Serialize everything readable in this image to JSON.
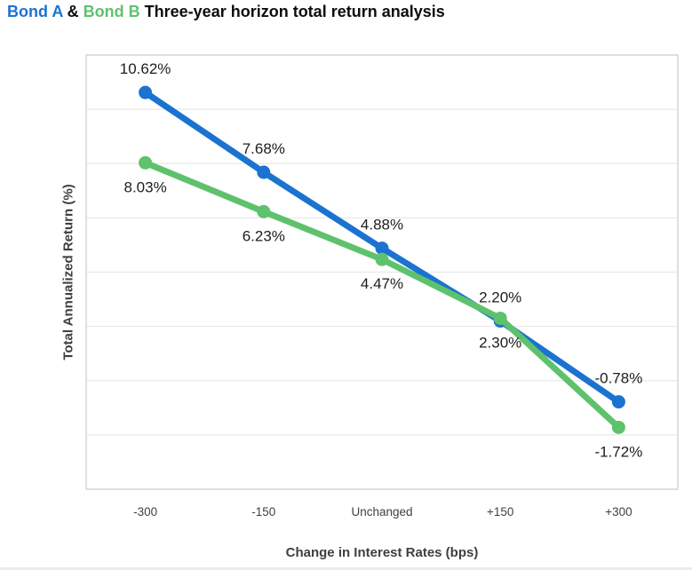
{
  "title": {
    "bond_a": "Bond A",
    "amp": " & ",
    "bond_b": "Bond B",
    "rest": " Three-year horizon total return analysis"
  },
  "colors": {
    "bond_a": "#1b73cf",
    "bond_b": "#5ec26d",
    "axis_text": "#404040",
    "axis_title_text": "#3f3f3f",
    "gridline": "#e9e9e9",
    "plot_border": "#d6d6d6",
    "label_text": "#1d1d1d"
  },
  "chart_data": {
    "type": "line",
    "title": "Bond A & Bond B Three-year horizon total return analysis",
    "xlabel": "Change in Interest Rates (bps)",
    "ylabel": "Total Annualized Return (%)",
    "categories": [
      "-300",
      "-150",
      "Unchanged",
      "+150",
      "+300"
    ],
    "series": [
      {
        "id": "bond-a",
        "name": "Bond A",
        "color_key": "bond_a",
        "values": [
          10.62,
          7.68,
          4.88,
          2.2,
          -0.78
        ],
        "labels": [
          "10.62%",
          "7.68%",
          "4.88%",
          "2.20%",
          "-0.78%"
        ],
        "label_position": "above"
      },
      {
        "id": "bond-b",
        "name": "Bond B",
        "color_key": "bond_b",
        "values": [
          8.03,
          6.23,
          4.47,
          2.3,
          -1.72
        ],
        "labels": [
          "8.03%",
          "6.23%",
          "4.47%",
          "2.30%",
          "-1.72%"
        ],
        "label_position": "below"
      }
    ],
    "ylim": [
      -4,
      12
    ],
    "grid_step": 2,
    "grid": true,
    "y_tick_labels_visible": false,
    "legend_position": "none"
  }
}
